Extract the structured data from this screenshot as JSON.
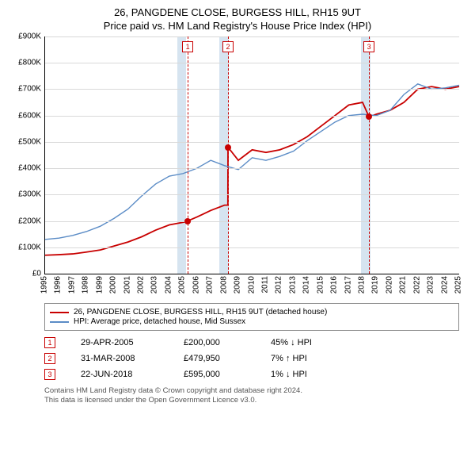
{
  "title": {
    "line1": "26, PANGDENE CLOSE, BURGESS HILL, RH15 9UT",
    "line2": "Price paid vs. HM Land Registry's House Price Index (HPI)",
    "fontsize": 13
  },
  "chart": {
    "type": "line",
    "background_color": "#ffffff",
    "grid_color": "#d9d9d9",
    "axis_color": "#000000",
    "font_size_ticks": 10,
    "x": {
      "min": 1995,
      "max": 2025,
      "ticks": [
        1995,
        1996,
        1997,
        1998,
        1999,
        2000,
        2001,
        2002,
        2003,
        2004,
        2005,
        2006,
        2007,
        2008,
        2009,
        2010,
        2011,
        2012,
        2013,
        2014,
        2015,
        2016,
        2017,
        2018,
        2019,
        2020,
        2021,
        2022,
        2023,
        2024,
        2025
      ]
    },
    "y": {
      "min": 0,
      "max": 900000,
      "tick_step": 100000,
      "ticks": [
        0,
        100000,
        200000,
        300000,
        400000,
        500000,
        600000,
        700000,
        800000,
        900000
      ],
      "tick_labels": [
        "£0",
        "£100K",
        "£200K",
        "£300K",
        "£400K",
        "£500K",
        "£600K",
        "£700K",
        "£800K",
        "£900K"
      ]
    },
    "bands": [
      {
        "from": 2004.6,
        "to": 2005.2,
        "color": "#d6e4f0"
      },
      {
        "from": 2007.6,
        "to": 2008.3,
        "color": "#d6e4f0"
      },
      {
        "from": 2017.9,
        "to": 2018.6,
        "color": "#d6e4f0"
      }
    ],
    "event_lines": [
      {
        "at": 2005.33,
        "color": "#c80000"
      },
      {
        "at": 2008.25,
        "color": "#c80000"
      },
      {
        "at": 2018.47,
        "color": "#c80000"
      }
    ],
    "event_labels": [
      {
        "at": 2005.33,
        "n": "1"
      },
      {
        "at": 2008.25,
        "n": "2"
      },
      {
        "at": 2018.47,
        "n": "3"
      }
    ],
    "series": [
      {
        "name": "property",
        "color": "#c80000",
        "width": 1.8,
        "points": [
          [
            1995,
            70000
          ],
          [
            1996,
            72000
          ],
          [
            1997,
            75000
          ],
          [
            1998,
            82000
          ],
          [
            1999,
            90000
          ],
          [
            2000,
            105000
          ],
          [
            2001,
            120000
          ],
          [
            2002,
            140000
          ],
          [
            2003,
            165000
          ],
          [
            2004,
            185000
          ],
          [
            2005,
            195000
          ],
          [
            2005.33,
            200000
          ],
          [
            2006,
            215000
          ],
          [
            2007,
            240000
          ],
          [
            2008,
            260000
          ],
          [
            2008.24,
            260000
          ],
          [
            2008.25,
            479950
          ],
          [
            2009,
            430000
          ],
          [
            2010,
            470000
          ],
          [
            2011,
            460000
          ],
          [
            2012,
            470000
          ],
          [
            2013,
            490000
          ],
          [
            2014,
            520000
          ],
          [
            2015,
            560000
          ],
          [
            2016,
            600000
          ],
          [
            2017,
            640000
          ],
          [
            2018,
            650000
          ],
          [
            2018.47,
            595000
          ],
          [
            2019,
            605000
          ],
          [
            2020,
            620000
          ],
          [
            2021,
            650000
          ],
          [
            2022,
            700000
          ],
          [
            2023,
            710000
          ],
          [
            2024,
            700000
          ],
          [
            2025,
            710000
          ]
        ]
      },
      {
        "name": "hpi",
        "color": "#5b8cc6",
        "width": 1.4,
        "points": [
          [
            1995,
            130000
          ],
          [
            1996,
            135000
          ],
          [
            1997,
            145000
          ],
          [
            1998,
            160000
          ],
          [
            1999,
            180000
          ],
          [
            2000,
            210000
          ],
          [
            2001,
            245000
          ],
          [
            2002,
            295000
          ],
          [
            2003,
            340000
          ],
          [
            2004,
            370000
          ],
          [
            2005,
            380000
          ],
          [
            2006,
            400000
          ],
          [
            2007,
            430000
          ],
          [
            2008,
            410000
          ],
          [
            2009,
            395000
          ],
          [
            2010,
            440000
          ],
          [
            2011,
            430000
          ],
          [
            2012,
            445000
          ],
          [
            2013,
            465000
          ],
          [
            2014,
            505000
          ],
          [
            2015,
            540000
          ],
          [
            2016,
            575000
          ],
          [
            2017,
            600000
          ],
          [
            2018,
            605000
          ],
          [
            2019,
            600000
          ],
          [
            2020,
            620000
          ],
          [
            2021,
            680000
          ],
          [
            2022,
            720000
          ],
          [
            2023,
            700000
          ],
          [
            2024,
            705000
          ],
          [
            2025,
            715000
          ]
        ]
      }
    ],
    "markers": [
      {
        "x": 2005.33,
        "y": 200000,
        "color": "#c80000"
      },
      {
        "x": 2008.25,
        "y": 479950,
        "color": "#c80000"
      },
      {
        "x": 2018.47,
        "y": 595000,
        "color": "#c80000"
      }
    ]
  },
  "legend": {
    "items": [
      {
        "color": "#c80000",
        "label": "26, PANGDENE CLOSE, BURGESS HILL, RH15 9UT (detached house)"
      },
      {
        "color": "#5b8cc6",
        "label": "HPI: Average price, detached house, Mid Sussex"
      }
    ]
  },
  "events": [
    {
      "n": "1",
      "date": "29-APR-2005",
      "price": "£200,000",
      "delta": "45% ↓ HPI"
    },
    {
      "n": "2",
      "date": "31-MAR-2008",
      "price": "£479,950",
      "delta": "7% ↑ HPI"
    },
    {
      "n": "3",
      "date": "22-JUN-2018",
      "price": "£595,000",
      "delta": "1% ↓ HPI"
    }
  ],
  "event_box_border": "#c80000",
  "footer": {
    "line1": "Contains HM Land Registry data © Crown copyright and database right 2024.",
    "line2": "This data is licensed under the Open Government Licence v3.0."
  }
}
